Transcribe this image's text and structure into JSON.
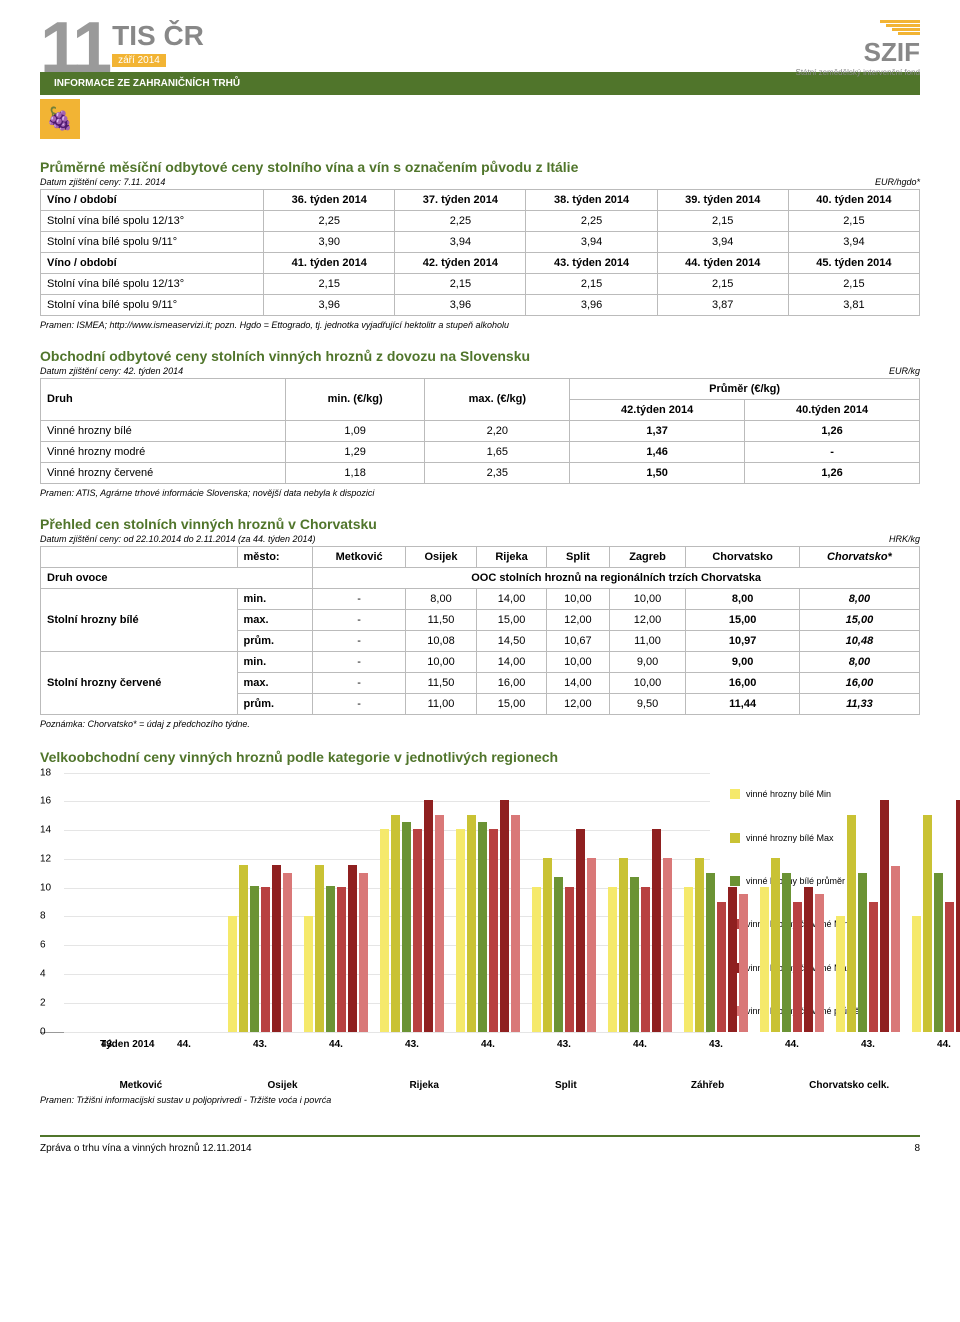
{
  "header": {
    "num": "11",
    "tis": "TIS ČR",
    "zari": "září 2014",
    "band": "INFORMACE ZE ZAHRANIČNÍCH TRHŮ",
    "szif": "SZIF",
    "szif_sub": "Státní zemědělský intervenční fond"
  },
  "t1": {
    "title": "Průměrné měsíční odbytové ceny stolního vína a vín s označením původu z Itálie",
    "sub": "Datum zjištění ceny: 7.11. 2014",
    "unit": "EUR/hgdo*",
    "h1": [
      "Víno / období",
      "36. týden 2014",
      "37. týden 2014",
      "38. týden 2014",
      "39. týden 2014",
      "40. týden 2014"
    ],
    "r1": [
      "Stolní vína bílé spolu 12/13°",
      "2,25",
      "2,25",
      "2,25",
      "2,15",
      "2,15"
    ],
    "r2": [
      "Stolní vína bílé spolu 9/11°",
      "3,90",
      "3,94",
      "3,94",
      "3,94",
      "3,94"
    ],
    "h2": [
      "Víno / období",
      "41. týden 2014",
      "42. týden 2014",
      "43. týden 2014",
      "44. týden 2014",
      "45. týden 2014"
    ],
    "r3": [
      "Stolní vína bílé spolu 12/13°",
      "2,15",
      "2,15",
      "2,15",
      "2,15",
      "2,15"
    ],
    "r4": [
      "Stolní vína bílé spolu 9/11°",
      "3,96",
      "3,96",
      "3,96",
      "3,87",
      "3,81"
    ],
    "src": "Pramen: ISMEA; http://www.ismeaservizi.it; pozn. Hgdo = Ettogrado, tj. jednotka vyjadřující hektolitr a stupeň alkoholu"
  },
  "t2": {
    "title": "Obchodní odbytové ceny stolních vinných hroznů z dovozu na Slovensku",
    "sub": "Datum zjištění ceny: 42. týden 2014",
    "unit": "EUR/kg",
    "h": [
      "Druh",
      "min. (€/kg)",
      "max. (€/kg)",
      "Průměr (€/kg)"
    ],
    "h2a": "42.týden 2014",
    "h2b": "40.týden 2014",
    "rows": [
      [
        "Vinné hrozny bílé",
        "1,09",
        "2,20",
        "1,37",
        "1,26"
      ],
      [
        "Vinné hrozny modré",
        "1,29",
        "1,65",
        "1,46",
        "-"
      ],
      [
        "Vinné hrozny červené",
        "1,18",
        "2,35",
        "1,50",
        "1,26"
      ]
    ],
    "src": "Pramen: ATIS, Agrárne trhové informácie Slovenska; novější data nebyla k dispozici"
  },
  "t3": {
    "title": "Přehled cen stolních vinných hroznů v Chorvatsku",
    "sub": "Datum zjištění ceny: od 22.10.2014 do 2.11.2014  (za 44. týden 2014)",
    "unit": "HRK/kg",
    "cities": [
      "město:",
      "Metković",
      "Osijek",
      "Rijeka",
      "Split",
      "Zagreb",
      "Chorvatsko",
      "Chorvatsko*"
    ],
    "druh": "Druh ovoce",
    "ooc": "OOC stolních hroznů na regionálních trzích Chorvatska",
    "g1": "Stolní hrozny bílé",
    "g2": "Stolní hrozny červené",
    "rows1": [
      [
        "min.",
        "-",
        "8,00",
        "14,00",
        "10,00",
        "10,00",
        "8,00",
        "8,00"
      ],
      [
        "max.",
        "-",
        "11,50",
        "15,00",
        "12,00",
        "12,00",
        "15,00",
        "15,00"
      ],
      [
        "prům.",
        "-",
        "10,08",
        "14,50",
        "10,67",
        "11,00",
        "10,97",
        "10,48"
      ]
    ],
    "rows2": [
      [
        "min.",
        "-",
        "10,00",
        "14,00",
        "10,00",
        "9,00",
        "9,00",
        "8,00"
      ],
      [
        "max.",
        "-",
        "11,50",
        "16,00",
        "14,00",
        "10,00",
        "16,00",
        "16,00"
      ],
      [
        "prům.",
        "-",
        "11,00",
        "15,00",
        "12,00",
        "9,50",
        "11,44",
        "11,33"
      ]
    ],
    "note": "Poznámka: Chorvatsko* = údaj z předchozího týdne."
  },
  "chart": {
    "title": "Velkoobchodní ceny vinných hroznů podle kategorie v jednotlivých regionech",
    "ymax": 18,
    "yticks": [
      0,
      2,
      4,
      6,
      8,
      10,
      12,
      14,
      16,
      18
    ],
    "colors": {
      "bmin": "#f5e96b",
      "bmax": "#c9c234",
      "bavg": "#6b9334",
      "cmin": "#b84141",
      "cmax": "#8f2020",
      "cavg": "#d97878"
    },
    "legend": [
      [
        "vinné hrozny bílé  Min",
        "#f5e96b"
      ],
      [
        "vinné hrozny bílé  Max",
        "#c9c234"
      ],
      [
        "vinné hrozny bílé  průměr",
        "#6b9334"
      ],
      [
        "vinné hrozny červené  Min",
        "#b84141"
      ],
      [
        "vinné hrozny červené  Max",
        "#8f2020"
      ],
      [
        "vinné hrozny červené průměr",
        "#d97878"
      ]
    ],
    "xlabs": [
      "43.",
      "44.",
      "43.",
      "44.",
      "43.",
      "44.",
      "43.",
      "44.",
      "43.",
      "44.",
      "43.",
      "44."
    ],
    "regions": [
      "Metković",
      "Osijek",
      "Rijeka",
      "Split",
      "Záhřeb",
      "Chorvatsko celk."
    ],
    "tyden": "Týden 2014",
    "data": [
      [
        0,
        0,
        0,
        0,
        0,
        0
      ],
      [
        0,
        0,
        0,
        0,
        0,
        0
      ],
      [
        8,
        11.5,
        10.08,
        10,
        11.5,
        11
      ],
      [
        8,
        11.5,
        10.08,
        10,
        11.5,
        11
      ],
      [
        14,
        15,
        14.5,
        14,
        16,
        15
      ],
      [
        14,
        15,
        14.5,
        14,
        16,
        15
      ],
      [
        10,
        12,
        10.67,
        10,
        14,
        12
      ],
      [
        10,
        12,
        10.67,
        10,
        14,
        12
      ],
      [
        10,
        12,
        11,
        9,
        10,
        9.5
      ],
      [
        10,
        12,
        11,
        9,
        10,
        9.5
      ],
      [
        8,
        15,
        10.97,
        9,
        16,
        11.44
      ],
      [
        8,
        15,
        10.97,
        9,
        16,
        11.44
      ]
    ],
    "src": "Pramen: Tržišni informacijski sustav u poljoprivredi - Tržište voća i povrća"
  },
  "footer": {
    "l": "Zpráva o trhu vína a vinných hroznů 12.11.2014",
    "r": "8"
  }
}
